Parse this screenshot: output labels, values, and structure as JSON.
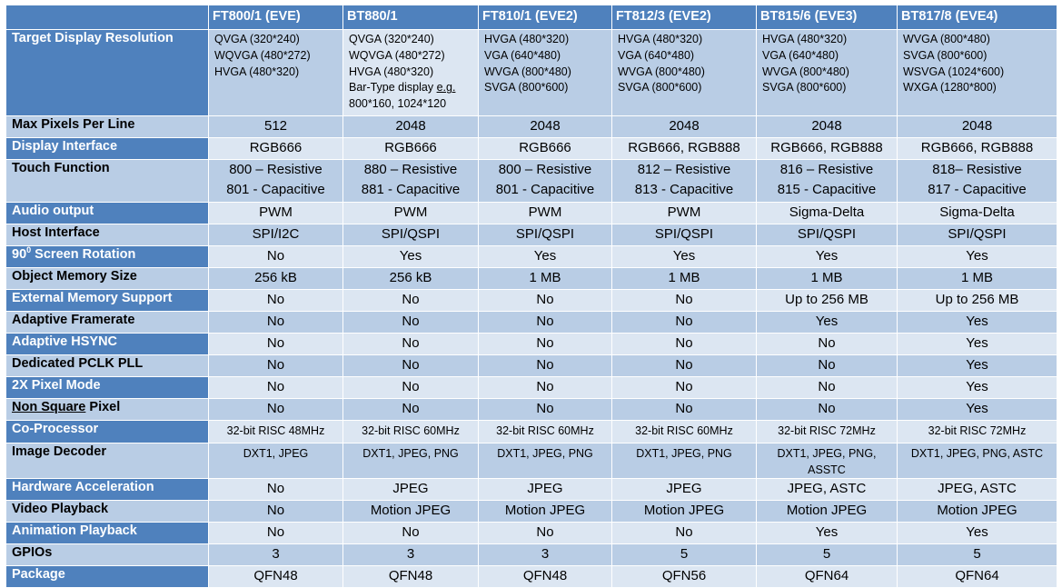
{
  "headers": [
    "",
    "FT800/1 (EVE)",
    "BT880/1",
    "FT810/1 (EVE2)",
    "FT812/3 (EVE2)",
    "BT815/6 (EVE3)",
    "BT817/8 (EVE4)"
  ],
  "resolution": {
    "label": "Target Display Resolution",
    "cells": [
      [
        "QVGA (320*240)",
        "WQVGA (480*272)",
        "HVGA (480*320)"
      ],
      [
        "QVGA (320*240)",
        "WQVGA (480*272)",
        "HVGA (480*320)",
        "Bar-Type display e.g.",
        "800*160, 1024*120"
      ],
      [
        "HVGA (480*320)",
        "VGA (640*480)",
        "WVGA (800*480)",
        "SVGA (800*600)"
      ],
      [
        "HVGA (480*320)",
        "VGA (640*480)",
        "WVGA (800*480)",
        "SVGA (800*600)"
      ],
      [
        "HVGA (480*320)",
        "VGA (640*480)",
        "WVGA (800*480)",
        "SVGA (800*600)"
      ],
      [
        "WVGA (800*480)",
        "SVGA (800*600)",
        "WSVGA (1024*600)",
        "WXGA (1280*800)"
      ]
    ]
  },
  "rows": [
    {
      "label": "Max Pixels Per Line",
      "values": [
        "512",
        "2048",
        "2048",
        "2048",
        "2048",
        "2048"
      ]
    },
    {
      "label": "Display Interface",
      "values": [
        "RGB666",
        "RGB666",
        "RGB666",
        "RGB666, RGB888",
        "RGB666, RGB888",
        "RGB666, RGB888"
      ]
    },
    {
      "label": "Touch Function",
      "values": [
        [
          "800 – Resistive",
          "801 - Capacitive"
        ],
        [
          "880 – Resistive",
          "881 - Capacitive"
        ],
        [
          "800 – Resistive",
          "801 - Capacitive"
        ],
        [
          "812 – Resistive",
          "813 - Capacitive"
        ],
        [
          "816 – Resistive",
          "815 - Capacitive"
        ],
        [
          "818– Resistive",
          "817 - Capacitive"
        ]
      ]
    },
    {
      "label": "Audio output",
      "values": [
        "PWM",
        "PWM",
        "PWM",
        "PWM",
        "Sigma-Delta",
        "Sigma-Delta"
      ]
    },
    {
      "label": "Host Interface",
      "values": [
        "SPI/I2C",
        "SPI/QSPI",
        "SPI/QSPI",
        "SPI/QSPI",
        "SPI/QSPI",
        "SPI/QSPI"
      ]
    },
    {
      "label": "90",
      "label_sup": "0",
      "label_rest": " Screen Rotation",
      "values": [
        "No",
        "Yes",
        "Yes",
        "Yes",
        "Yes",
        "Yes"
      ]
    },
    {
      "label": "Object Memory Size",
      "values": [
        "256 kB",
        "256 kB",
        "1 MB",
        "1 MB",
        "1 MB",
        "1 MB"
      ]
    },
    {
      "label": "External Memory Support",
      "values": [
        "No",
        "No",
        "No",
        "No",
        "Up to 256 MB",
        "Up to 256 MB"
      ]
    },
    {
      "label": "Adaptive Framerate",
      "values": [
        "No",
        "No",
        "No",
        "No",
        "Yes",
        "Yes"
      ]
    },
    {
      "label": "Adaptive HSYNC",
      "values": [
        "No",
        "No",
        "No",
        "No",
        "No",
        "Yes"
      ]
    },
    {
      "label": "Dedicated PCLK PLL",
      "values": [
        "No",
        "No",
        "No",
        "No",
        "No",
        "Yes"
      ]
    },
    {
      "label": "2X Pixel Mode",
      "values": [
        "No",
        "No",
        "No",
        "No",
        "No",
        "Yes"
      ]
    },
    {
      "label": "Non Square",
      "label_rest": " Pixel",
      "values": [
        "No",
        "No",
        "No",
        "No",
        "No",
        "Yes"
      ]
    },
    {
      "label": "Co-Processor",
      "values": [
        "32-bit RISC 48MHz",
        "32-bit RISC 60MHz",
        "32-bit RISC 60MHz",
        "32-bit RISC 60MHz",
        "32-bit RISC 72MHz",
        "32-bit RISC 72MHz"
      ]
    },
    {
      "label": "Image Decoder",
      "values": [
        "DXT1, JPEG",
        "DXT1, JPEG, PNG",
        "DXT1, JPEG, PNG",
        "DXT1, JPEG, PNG",
        [
          "DXT1, JPEG, PNG,",
          "ASSTC"
        ],
        "DXT1, JPEG, PNG, ASTC"
      ]
    },
    {
      "label": "Hardware Acceleration",
      "values": [
        "No",
        "JPEG",
        "JPEG",
        "JPEG",
        "JPEG, ASTC",
        "JPEG, ASTC"
      ]
    },
    {
      "label": "Video Playback",
      "values": [
        "No",
        "Motion JPEG",
        "Motion JPEG",
        "Motion JPEG",
        "Motion JPEG",
        "Motion JPEG"
      ]
    },
    {
      "label": "Animation Playback",
      "values": [
        "No",
        "No",
        "No",
        "No",
        "Yes",
        "Yes"
      ]
    },
    {
      "label": "GPIOs",
      "values": [
        "3",
        "3",
        "3",
        "5",
        "5",
        "5"
      ]
    },
    {
      "label": "Package",
      "values": [
        "QFN48",
        "QFN48",
        "QFN48",
        "QFN56",
        "QFN64",
        "QFN64"
      ]
    }
  ]
}
